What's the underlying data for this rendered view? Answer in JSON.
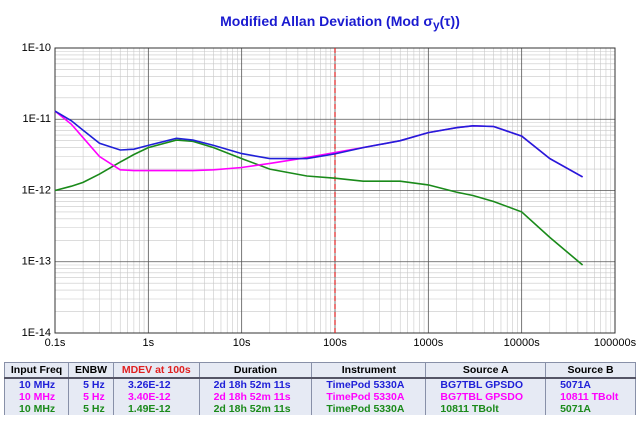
{
  "chart_data": {
    "type": "line",
    "title_parts": [
      "Modified Allan Deviation (Mod σ",
      "y",
      "(τ))"
    ],
    "xlog": true,
    "ylog": true,
    "grid": true,
    "x": [
      0.1,
      0.15,
      0.2,
      0.3,
      0.5,
      0.7,
      1,
      2,
      3,
      5,
      10,
      20,
      50,
      100,
      200,
      500,
      1000,
      2000,
      3000,
      5000,
      10000,
      20000,
      45000
    ],
    "series": [
      {
        "color": "#2020d8",
        "values": [
          1.3e-11,
          9.5e-12,
          7e-12,
          4.6e-12,
          3.7e-12,
          3.8e-12,
          4.3e-12,
          5.4e-12,
          5.1e-12,
          4.3e-12,
          3.3e-12,
          2.8e-12,
          2.8e-12,
          3.26e-12,
          4e-12,
          5e-12,
          6.5e-12,
          7.6e-12,
          8.1e-12,
          7.9e-12,
          5.8e-12,
          2.8e-12,
          1.55e-12
        ]
      },
      {
        "color": "#ff00ff",
        "values": [
          1.3e-11,
          8.5e-12,
          5.5e-12,
          3e-12,
          1.95e-12,
          1.9e-12,
          1.9e-12,
          1.9e-12,
          1.9e-12,
          1.95e-12,
          2.1e-12,
          2.4e-12,
          2.9e-12,
          3.4e-12,
          4e-12,
          5e-12,
          6.5e-12,
          7.6e-12,
          8.1e-12,
          7.9e-12,
          5.8e-12,
          2.8e-12,
          1.55e-12
        ]
      },
      {
        "color": "#1a8a1a",
        "values": [
          1e-12,
          1.15e-12,
          1.3e-12,
          1.7e-12,
          2.5e-12,
          3.2e-12,
          4e-12,
          5.1e-12,
          4.9e-12,
          4e-12,
          2.8e-12,
          2e-12,
          1.6e-12,
          1.49e-12,
          1.35e-12,
          1.35e-12,
          1.2e-12,
          9.5e-13,
          8.5e-13,
          7e-13,
          5e-13,
          2.2e-13,
          9e-14
        ]
      }
    ],
    "marker_x": 100,
    "marker_color": "#e02020",
    "xlim": [
      0.1,
      100000
    ],
    "ylim": [
      1e-14,
      1e-10
    ],
    "xticks": [
      {
        "value": 0.1,
        "label": "0.1s"
      },
      {
        "value": 1,
        "label": "1s"
      },
      {
        "value": 10,
        "label": "10s"
      },
      {
        "value": 100,
        "label": "100s"
      },
      {
        "value": 1000,
        "label": "1000s"
      },
      {
        "value": 10000,
        "label": "10000s"
      },
      {
        "value": 100000,
        "label": "100000s"
      }
    ],
    "yticks": [
      {
        "value": 1e-14,
        "label": "1E-14"
      },
      {
        "value": 1e-13,
        "label": "1E-13"
      },
      {
        "value": 1e-12,
        "label": "1E-12"
      },
      {
        "value": 1e-11,
        "label": "1E-11"
      },
      {
        "value": 1e-10,
        "label": "1E-10"
      }
    ]
  },
  "table": {
    "header": [
      "Input Freq",
      "ENBW",
      "MDEV at 100s",
      "Duration",
      "Instrument",
      "Source A",
      "Source B"
    ],
    "rows": [
      [
        "10 MHz",
        "5 Hz",
        "3.26E-12",
        "2d 18h 52m 11s",
        "TimePod 5330A",
        "BG7TBL GPSDO",
        "5071A"
      ],
      [
        "10 MHz",
        "5 Hz",
        "3.40E-12",
        "2d 18h 52m 11s",
        "TimePod 5330A",
        "BG7TBL GPSDO",
        "10811 TBolt"
      ],
      [
        "10 MHz",
        "5 Hz",
        "1.49E-12",
        "2d 18h 52m 11s",
        "TimePod 5330A",
        "10811 TBolt",
        "5071A"
      ]
    ]
  }
}
